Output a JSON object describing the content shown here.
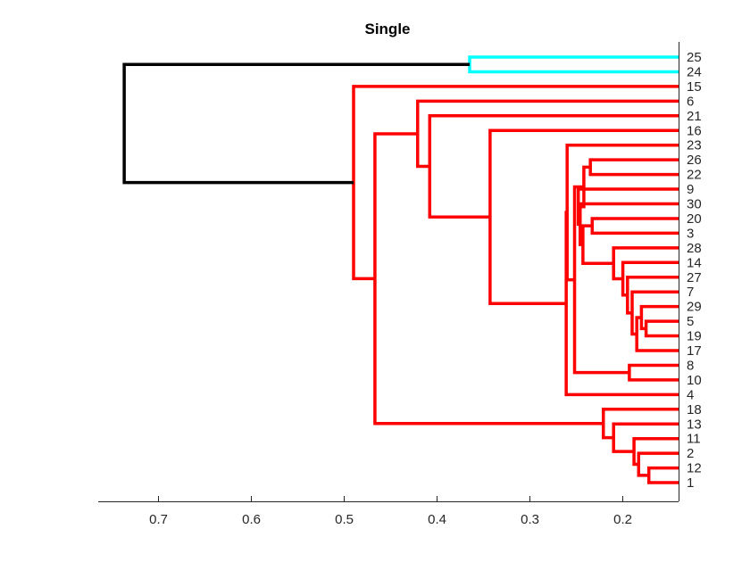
{
  "chart_data": {
    "type": "dendrogram",
    "title": "Single",
    "orientation": "left",
    "xlim": [
      0.14,
      0.765
    ],
    "x_reversed": true,
    "xticks": [
      0.7,
      0.6,
      0.5,
      0.4,
      0.3,
      0.2
    ],
    "xtick_labels": [
      "0.7",
      "0.6",
      "0.5",
      "0.4",
      "0.3",
      "0.2"
    ],
    "leaf_order": [
      "25",
      "24",
      "15",
      "6",
      "21",
      "16",
      "23",
      "26",
      "22",
      "9",
      "30",
      "20",
      "3",
      "28",
      "14",
      "27",
      "7",
      "29",
      "5",
      "19",
      "17",
      "8",
      "10",
      "4",
      "18",
      "13",
      "11",
      "2",
      "12",
      "1"
    ],
    "colors": {
      "black": "#000000",
      "cyan": "#00ffff",
      "red": "#ff0000"
    },
    "links": [
      {
        "id": "L1",
        "a": "12",
        "b": "1",
        "height": 0.172,
        "color": "red"
      },
      {
        "id": "L2",
        "a": "2",
        "b": "L1",
        "height": 0.183,
        "color": "red"
      },
      {
        "id": "L3",
        "a": "11",
        "b": "L2",
        "height": 0.188,
        "color": "red"
      },
      {
        "id": "L4",
        "a": "13",
        "b": "L3",
        "height": 0.21,
        "color": "red"
      },
      {
        "id": "L5",
        "a": "18",
        "b": "L4",
        "height": 0.221,
        "color": "red"
      },
      {
        "id": "L6",
        "a": "5",
        "b": "19",
        "height": 0.175,
        "color": "red"
      },
      {
        "id": "L7",
        "a": "29",
        "b": "L6",
        "height": 0.18,
        "color": "red"
      },
      {
        "id": "L8",
        "a": "17",
        "b": "L7",
        "height": 0.185,
        "color": "red"
      },
      {
        "id": "L9",
        "a": "7",
        "b": "L8",
        "height": 0.19,
        "color": "red"
      },
      {
        "id": "L10",
        "a": "27",
        "b": "L9",
        "height": 0.195,
        "color": "red"
      },
      {
        "id": "L11",
        "a": "14",
        "b": "L10",
        "height": 0.2,
        "color": "red"
      },
      {
        "id": "L12",
        "a": "28",
        "b": "L11",
        "height": 0.21,
        "color": "red"
      },
      {
        "id": "L13",
        "a": "20",
        "b": "3",
        "height": 0.233,
        "color": "red"
      },
      {
        "id": "L14",
        "a": "L13",
        "b": "L12",
        "height": 0.243,
        "color": "red"
      },
      {
        "id": "L15",
        "a": "30",
        "b": "L14",
        "height": 0.246,
        "color": "red"
      },
      {
        "id": "L16",
        "a": "9",
        "b": "L15",
        "height": 0.248,
        "color": "red"
      },
      {
        "id": "L17",
        "a": "26",
        "b": "22",
        "height": 0.235,
        "color": "red"
      },
      {
        "id": "L18",
        "a": "L17",
        "b": "L16",
        "height": 0.242,
        "color": "red"
      },
      {
        "id": "L19",
        "a": "8",
        "b": "10",
        "height": 0.193,
        "color": "red"
      },
      {
        "id": "L20",
        "a": "L18",
        "b": "L19",
        "height": 0.252,
        "color": "red"
      },
      {
        "id": "L21",
        "a": "23",
        "b": "L20",
        "height": 0.26,
        "color": "red"
      },
      {
        "id": "L22",
        "a": "L21",
        "b": "4",
        "height": 0.261,
        "color": "red"
      },
      {
        "id": "L23",
        "a": "16",
        "b": "L22",
        "height": 0.343,
        "color": "red"
      },
      {
        "id": "L24",
        "a": "21",
        "b": "L23",
        "height": 0.408,
        "color": "red"
      },
      {
        "id": "L25",
        "a": "6",
        "b": "L24",
        "height": 0.421,
        "color": "red"
      },
      {
        "id": "L26",
        "a": "L25",
        "b": "L5",
        "height": 0.467,
        "color": "red"
      },
      {
        "id": "L27",
        "a": "15",
        "b": "L26",
        "height": 0.49,
        "color": "red"
      },
      {
        "id": "L28",
        "a": "25",
        "b": "24",
        "height": 0.365,
        "color": "cyan"
      },
      {
        "id": "L29",
        "a": "L28",
        "b": "L27",
        "height": 0.737,
        "color": "black"
      }
    ]
  }
}
